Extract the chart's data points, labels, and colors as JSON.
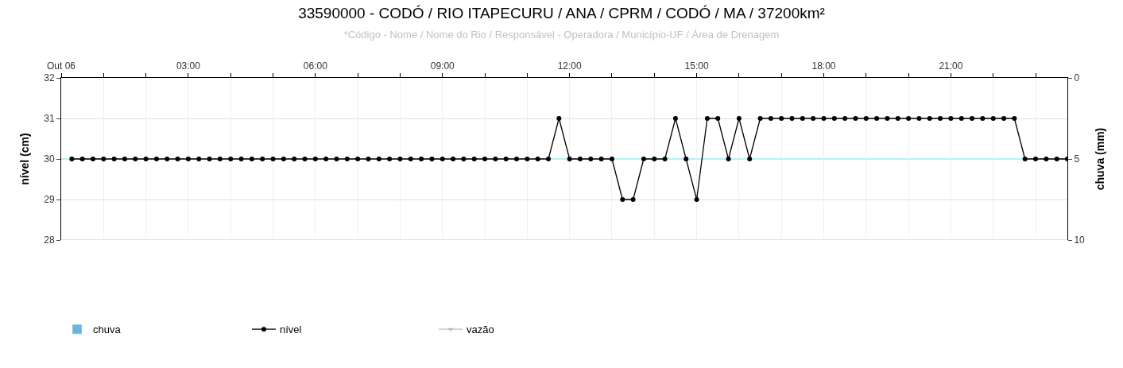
{
  "chart_data": {
    "type": "line",
    "title": "33590000 - CODÓ / RIO ITAPECURU / ANA / CPRM / CODÓ / MA / 37200km²",
    "subtitle": "*Código - Nome / Nome do Rio / Responsável - Operadora / Município-UF / Área de Drenagem",
    "ylabel": "nível (cm)",
    "y2label": "chuva (mm)",
    "x": [
      0.25,
      0.5,
      0.75,
      1,
      1.25,
      1.5,
      1.75,
      2,
      2.25,
      2.5,
      2.75,
      3,
      3.25,
      3.5,
      3.75,
      4,
      4.25,
      4.5,
      4.75,
      5,
      5.25,
      5.5,
      5.75,
      6,
      6.25,
      6.5,
      6.75,
      7,
      7.25,
      7.5,
      7.75,
      8,
      8.25,
      8.5,
      8.75,
      9,
      9.25,
      9.5,
      9.75,
      10,
      10.25,
      10.5,
      10.75,
      11,
      11.25,
      11.5,
      11.75,
      12,
      12.25,
      12.5,
      12.75,
      13,
      13.25,
      13.5,
      13.75,
      14,
      14.25,
      14.5,
      14.75,
      15,
      15.25,
      15.5,
      15.75,
      16,
      16.25,
      16.5,
      16.75,
      17,
      17.25,
      17.5,
      17.75,
      18,
      18.25,
      18.5,
      18.75,
      19,
      19.25,
      19.5,
      19.75,
      20,
      20.25,
      20.5,
      20.75,
      21,
      21.25,
      21.5,
      21.75,
      22,
      22.25,
      22.5,
      22.75,
      23,
      23.25,
      23.5,
      23.75
    ],
    "series": [
      {
        "name": "chuva",
        "type": "bar",
        "color": "#68b5de",
        "values": [
          null,
          null,
          null,
          null,
          null,
          null,
          null,
          null,
          null,
          null,
          null,
          null,
          null,
          null,
          null,
          null,
          null,
          null,
          null,
          null,
          null,
          null,
          null,
          null,
          null,
          null,
          null,
          null,
          null,
          null,
          null,
          null,
          null,
          null,
          null,
          null,
          null,
          null,
          null,
          null,
          null,
          null,
          null,
          null,
          null,
          null,
          null,
          null,
          null,
          null,
          null,
          null,
          null,
          null,
          null,
          null,
          null,
          null,
          null,
          null,
          null,
          null,
          null,
          null,
          null,
          null,
          null,
          null,
          null,
          null,
          null,
          null,
          null,
          null,
          null,
          null,
          null,
          null,
          null,
          null,
          null,
          null,
          null,
          null,
          null,
          null,
          null,
          null,
          null,
          null,
          null,
          null,
          null,
          null,
          null
        ]
      },
      {
        "name": "nível",
        "color": "#000000",
        "marker": "circle",
        "values": [
          30,
          30,
          30,
          30,
          30,
          30,
          30,
          30,
          30,
          30,
          30,
          30,
          30,
          30,
          30,
          30,
          30,
          30,
          30,
          30,
          30,
          30,
          30,
          30,
          30,
          30,
          30,
          30,
          30,
          30,
          30,
          30,
          30,
          30,
          30,
          30,
          30,
          30,
          30,
          30,
          30,
          30,
          30,
          30,
          30,
          30,
          31,
          30,
          30,
          30,
          30,
          30,
          29,
          29,
          30,
          30,
          30,
          31,
          30,
          29,
          31,
          31,
          30,
          31,
          30,
          31,
          31,
          31,
          31,
          31,
          31,
          31,
          31,
          31,
          31,
          31,
          31,
          31,
          31,
          31,
          31,
          31,
          31,
          31,
          31,
          31,
          31,
          31,
          31,
          31,
          30,
          30,
          30,
          30,
          30
        ]
      },
      {
        "name": "vazão",
        "type": "line",
        "color": "#b8bfc0",
        "marker": "triangle",
        "values": [
          null,
          null,
          null,
          null,
          null,
          null,
          null,
          null,
          null,
          null,
          null,
          null,
          null,
          null,
          null,
          null,
          null,
          null,
          null,
          null,
          null,
          null,
          null,
          null,
          null,
          null,
          null,
          null,
          null,
          null,
          null,
          null,
          null,
          null,
          null,
          null,
          null,
          null,
          null,
          null,
          null,
          null,
          null,
          null,
          null,
          null,
          null,
          null,
          null,
          null,
          null,
          null,
          null,
          null,
          null,
          null,
          null,
          null,
          null,
          null,
          null,
          null,
          null,
          null,
          null,
          null,
          null,
          null,
          null,
          null,
          null,
          null,
          null,
          null,
          null,
          null,
          null,
          null,
          null,
          null,
          null,
          null,
          null,
          null,
          null,
          null,
          null,
          null,
          null,
          null,
          null,
          null,
          null,
          null,
          null
        ]
      }
    ],
    "xlim": [
      0,
      23.75
    ],
    "xticks": [
      {
        "value": 0,
        "label": "Out 06"
      },
      {
        "value": 1,
        "label": null
      },
      {
        "value": 2,
        "label": null
      },
      {
        "value": 3,
        "label": "03:00"
      },
      {
        "value": 4,
        "label": null
      },
      {
        "value": 5,
        "label": null
      },
      {
        "value": 6,
        "label": "06:00"
      },
      {
        "value": 7,
        "label": null
      },
      {
        "value": 8,
        "label": null
      },
      {
        "value": 9,
        "label": "09:00"
      },
      {
        "value": 10,
        "label": null
      },
      {
        "value": 11,
        "label": null
      },
      {
        "value": 12,
        "label": "12:00"
      },
      {
        "value": 13,
        "label": null
      },
      {
        "value": 14,
        "label": null
      },
      {
        "value": 15,
        "label": "15:00"
      },
      {
        "value": 16,
        "label": null
      },
      {
        "value": 17,
        "label": null
      },
      {
        "value": 18,
        "label": "18:00"
      },
      {
        "value": 19,
        "label": null
      },
      {
        "value": 20,
        "label": null
      },
      {
        "value": 21,
        "label": "21:00"
      },
      {
        "value": 22,
        "label": null
      },
      {
        "value": 23,
        "label": null
      }
    ],
    "ylim": [
      28,
      32
    ],
    "yticks": [
      28,
      29,
      30,
      31,
      32
    ],
    "y2lim": [
      10,
      0
    ],
    "y2ticks": [
      0,
      5,
      10
    ],
    "ref_lines": [
      {
        "axis": "y2",
        "value": 5,
        "color": "#9beff2"
      },
      {
        "axis": "y2",
        "value": 10,
        "color": "#9beff2"
      }
    ],
    "grid": true,
    "legend": "bottom left"
  }
}
